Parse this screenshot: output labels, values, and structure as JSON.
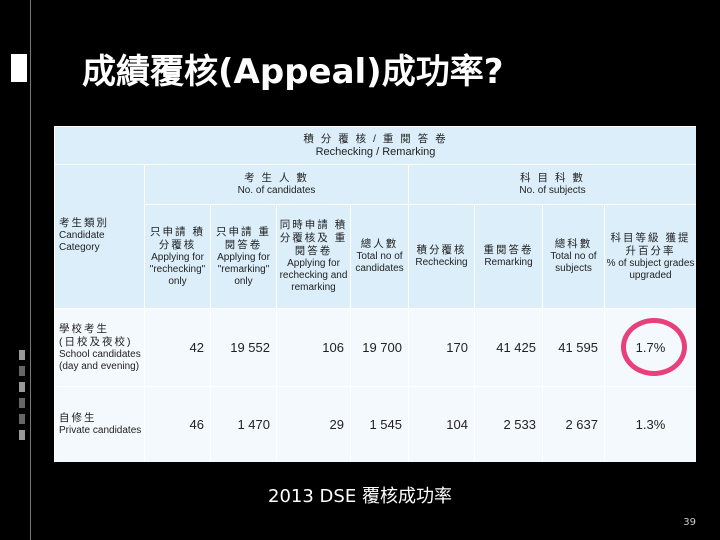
{
  "slide": {
    "title": "成績覆核(Appeal)成功率?",
    "caption": "2013 DSE 覆核成功率",
    "page_number": "39"
  },
  "table": {
    "top_header": {
      "zh": "積 分 覆 核  /  重 閱 答 卷",
      "en": "Rechecking / Remarking"
    },
    "candidates_group": {
      "zh": "考 生 人 數",
      "en": "No. of candidates"
    },
    "subjects_group": {
      "zh": "科 目 科 數",
      "en": "No. of subjects"
    },
    "category_header": {
      "zh": "考生類別",
      "en1": "Candidate",
      "en2": "Category"
    },
    "columns": [
      {
        "zh": "只申請 積分覆核",
        "en": "Applying for \"rechecking\" only"
      },
      {
        "zh": "只申請 重閱答卷",
        "en": "Applying for \"remarking\" only"
      },
      {
        "zh": "同時申請 積分覆核及 重閱答卷",
        "en": "Applying for rechecking and remarking"
      },
      {
        "zh": "總人數",
        "en": "Total no of candidates"
      },
      {
        "zh": "積分覆核",
        "en": "Rechecking"
      },
      {
        "zh": "重閱答卷",
        "en": "Remarking"
      },
      {
        "zh": "總科數",
        "en": "Total no of subjects"
      },
      {
        "zh": "科目等級 獲提升百分率",
        "en": "% of subject grades upgraded"
      }
    ],
    "rows": [
      {
        "label_zh1": "學校考生",
        "label_zh2": "(日校及夜校)",
        "label_en1": "School candidates",
        "label_en2": "(day and evening)",
        "values": [
          "42",
          "19 552",
          "106",
          "19 700",
          "170",
          "41 425",
          "41 595",
          "1.7%"
        ]
      },
      {
        "label_zh1": "自修生",
        "label_zh2": "",
        "label_en1": "Private candidates",
        "label_en2": "",
        "values": [
          "46",
          "1 470",
          "29",
          "1 545",
          "104",
          "2 533",
          "2 637",
          "1.3%"
        ]
      }
    ]
  },
  "colors": {
    "background": "#000000",
    "header_blue": "#dbeefa",
    "highlight_circle": "#e8407a"
  }
}
